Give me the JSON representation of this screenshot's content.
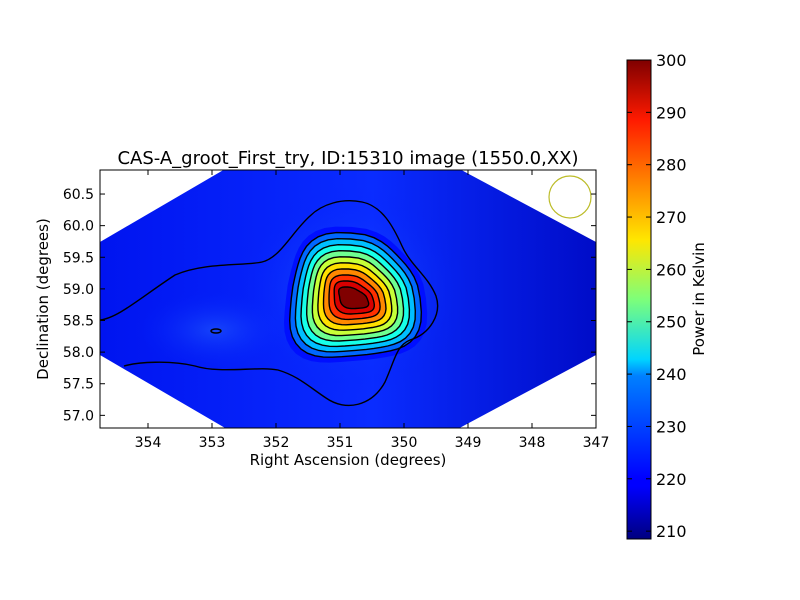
{
  "chart_data": {
    "type": "heatmap",
    "title": "CAS-A_groot_First_try, ID:15310 image (1550.0,XX)",
    "xlabel": "Right Ascension (degrees)",
    "ylabel": "Declination (degrees)",
    "xlim": [
      354.75,
      347.0
    ],
    "ylim": [
      56.8,
      60.88
    ],
    "xticks": [
      "354",
      "353",
      "352",
      "351",
      "350",
      "349",
      "348",
      "347"
    ],
    "yticks": [
      "57.0",
      "57.5",
      "58.0",
      "58.5",
      "59.0",
      "59.5",
      "60.0",
      "60.5"
    ],
    "colorbar": {
      "label": "Power in Kelvin",
      "range": [
        208.5,
        300
      ],
      "ticks": [
        "210",
        "220",
        "230",
        "240",
        "250",
        "260",
        "270",
        "280",
        "290",
        "300"
      ],
      "colormap": "jet"
    },
    "peak": {
      "ra": 350.8,
      "dec": 58.85,
      "value": 300
    },
    "background_level": 218,
    "sky_coverage": "diamond",
    "beam_marker": {
      "ra": 347.45,
      "dec": 60.45,
      "color": "#bcbc28"
    },
    "contour_color": "#000000"
  }
}
